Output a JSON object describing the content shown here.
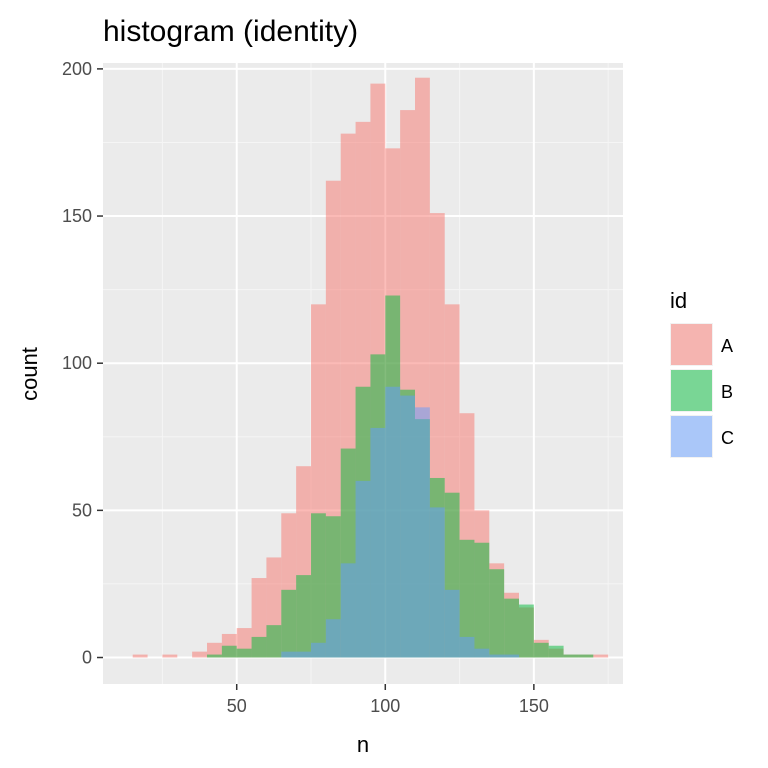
{
  "chart_data": {
    "type": "bar",
    "subtype": "overlaid-histogram",
    "title": "histogram (identity)",
    "xlabel": "n",
    "ylabel": "count",
    "xlim": [
      5,
      180
    ],
    "ylim": [
      -9,
      202
    ],
    "x_ticks": [
      50,
      100,
      150
    ],
    "x_tick_labels": [
      "50",
      "100",
      "150"
    ],
    "y_ticks": [
      0,
      50,
      100,
      150,
      200
    ],
    "y_tick_labels": [
      "0",
      "50",
      "100",
      "150",
      "200"
    ],
    "grid": true,
    "legend": {
      "title": "id",
      "position": "right"
    },
    "bin_width": 5,
    "bin_starts": [
      15,
      20,
      25,
      30,
      35,
      40,
      45,
      50,
      55,
      60,
      65,
      70,
      75,
      80,
      85,
      90,
      95,
      100,
      105,
      110,
      115,
      120,
      125,
      130,
      135,
      140,
      145,
      150,
      155,
      160,
      165,
      170
    ],
    "series": [
      {
        "name": "A",
        "color": "#f8766d",
        "values": [
          1,
          0,
          1,
          0,
          2,
          5,
          8,
          10,
          27,
          34,
          49,
          65,
          120,
          162,
          178,
          182,
          195,
          173,
          186,
          197,
          151,
          120,
          83,
          50,
          32,
          22,
          17,
          6,
          3,
          1,
          1,
          1
        ]
      },
      {
        "name": "B",
        "color": "#00ba38",
        "values": [
          0,
          0,
          0,
          0,
          0,
          1,
          4,
          3,
          7,
          11,
          23,
          28,
          49,
          48,
          71,
          92,
          103,
          123,
          91,
          81,
          61,
          56,
          40,
          39,
          30,
          20,
          18,
          5,
          4,
          1,
          1,
          0
        ]
      },
      {
        "name": "C",
        "color": "#619cff",
        "values": [
          0,
          0,
          0,
          0,
          0,
          0,
          0,
          0,
          0,
          0,
          2,
          2,
          5,
          13,
          32,
          60,
          78,
          92,
          89,
          85,
          51,
          23,
          7,
          3,
          1,
          1,
          0,
          0,
          0,
          0,
          0,
          0
        ]
      }
    ]
  }
}
